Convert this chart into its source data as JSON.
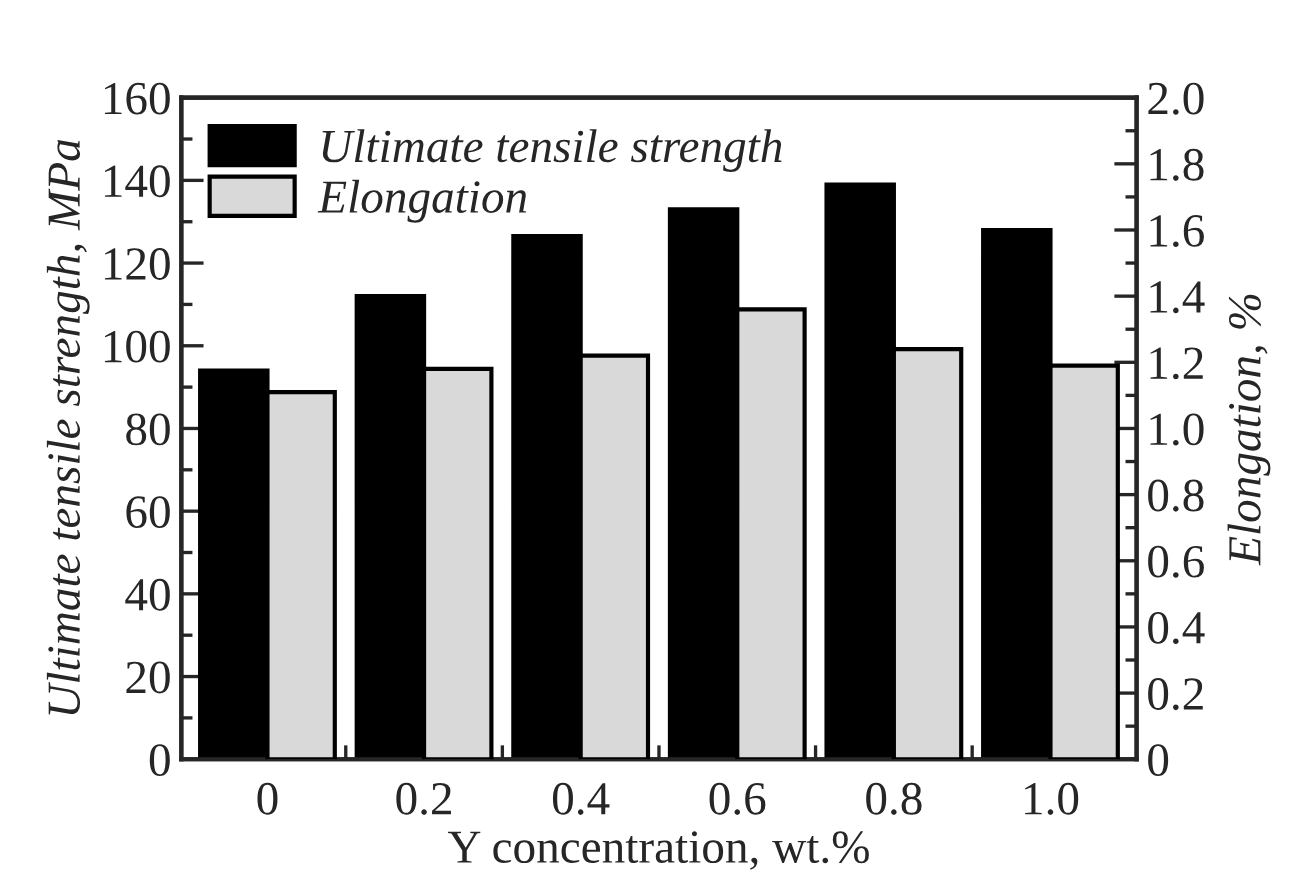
{
  "chart_data": {
    "type": "bar",
    "xlabel": "Y concentration, wt.%",
    "ylabel": "Ultimate tensile strength, MPa",
    "y2label": "Elongation, %",
    "categories": [
      "0",
      "0.2",
      "0.4",
      "0.6",
      "0.8",
      "1.0"
    ],
    "series": [
      {
        "name": "Ultimate tensile strength",
        "color": "#000000",
        "values": [
          94,
          112,
          126.5,
          133,
          139,
          128
        ]
      },
      {
        "name": "Elongation",
        "color": "#d9d9d9",
        "axis": "y2",
        "values": [
          1.11,
          1.18,
          1.22,
          1.36,
          1.24,
          1.19
        ]
      }
    ],
    "ylim": [
      0,
      160
    ],
    "yticks": [
      0,
      20,
      40,
      60,
      80,
      100,
      120,
      140,
      160
    ],
    "y2lim": [
      0,
      2.0
    ],
    "y2ticks": [
      {
        "value": 0,
        "label": "0"
      },
      0.2,
      0.4,
      0.6,
      0.8,
      {
        "value": 1.0,
        "label": "1.0"
      },
      1.2,
      1.4,
      1.6,
      1.8,
      {
        "value": 2.0,
        "label": "2.0"
      }
    ],
    "legend": "top left",
    "grid": false
  }
}
